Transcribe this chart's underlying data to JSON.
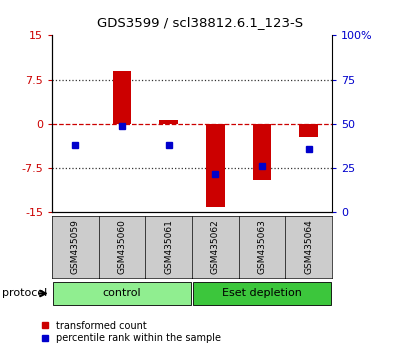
{
  "title": "GDS3599 / scl38812.6.1_123-S",
  "samples": [
    "GSM435059",
    "GSM435060",
    "GSM435061",
    "GSM435062",
    "GSM435063",
    "GSM435064"
  ],
  "transformed_count": [
    0.0,
    9.0,
    0.7,
    -14.0,
    -9.5,
    -2.2
  ],
  "percentile_rank_mapped": [
    -3.5,
    -0.4,
    -3.5,
    -8.5,
    -7.2,
    -4.2
  ],
  "ylim": [
    -15,
    15
  ],
  "yticks_left": [
    -15,
    -7.5,
    0,
    7.5,
    15
  ],
  "yticks_right": [
    0,
    25,
    50,
    75,
    100
  ],
  "yticks_right_mapped": [
    -15,
    -7.5,
    0,
    7.5,
    15
  ],
  "protocol_groups": [
    {
      "label": "control",
      "start": 0,
      "end": 2,
      "color": "#90EE90"
    },
    {
      "label": "Eset depletion",
      "start": 3,
      "end": 5,
      "color": "#3CC63C"
    }
  ],
  "bar_color": "#CC0000",
  "dot_color": "#0000CC",
  "zero_line_color": "#CC0000",
  "dotted_line_color": "#333333",
  "plot_bg_color": "#FFFFFF",
  "tick_color_left": "#CC0000",
  "tick_color_right": "#0000CC",
  "legend_red_label": "transformed count",
  "legend_blue_label": "percentile rank within the sample",
  "protocol_label": "protocol",
  "sample_label_bg": "#CCCCCC",
  "bar_width": 0.4
}
